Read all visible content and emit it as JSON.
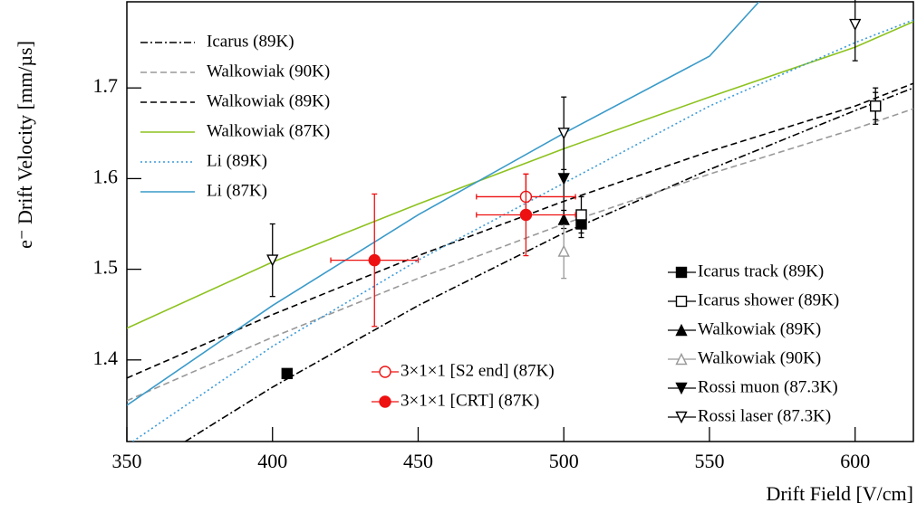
{
  "chart_data": {
    "type": "line",
    "x_label": "Drift Field [V/cm]",
    "y_label": "e⁻ Drift Velocity [mm/µs]",
    "xlim": [
      350,
      620
    ],
    "ylim": [
      1.31,
      1.795
    ],
    "xticks": [
      350,
      400,
      450,
      500,
      550,
      600
    ],
    "yticks": [
      1.4,
      1.5,
      1.6,
      1.7
    ],
    "series": [
      {
        "name": "Icarus (89K)",
        "kind": "line",
        "dash": "dashdot",
        "color": "#000000",
        "x": [
          370,
          400,
          450,
          500,
          550,
          600,
          620
        ],
        "values": [
          1.31,
          1.37,
          1.46,
          1.54,
          1.61,
          1.675,
          1.7
        ]
      },
      {
        "name": "Walkowiak (90K)",
        "kind": "line",
        "dash": "dashed",
        "color": "#999999",
        "x": [
          350,
          400,
          450,
          500,
          550,
          600,
          620
        ],
        "values": [
          1.355,
          1.425,
          1.49,
          1.55,
          1.605,
          1.655,
          1.677
        ]
      },
      {
        "name": "Walkowiak (89K)",
        "kind": "line",
        "dash": "dashed",
        "color": "#000000",
        "x": [
          350,
          400,
          450,
          500,
          550,
          600,
          620
        ],
        "values": [
          1.38,
          1.45,
          1.515,
          1.575,
          1.63,
          1.68,
          1.705
        ]
      },
      {
        "name": "Walkowiak (87K)",
        "kind": "line",
        "dash": "solid",
        "color": "#8dc21f",
        "x": [
          350,
          400,
          450,
          500,
          550,
          600,
          620
        ],
        "values": [
          1.435,
          1.508,
          1.572,
          1.633,
          1.69,
          1.745,
          1.773
        ]
      },
      {
        "name": "Li (89K)",
        "kind": "line",
        "dash": "dotted",
        "color": "#3a9ad9",
        "x": [
          352,
          400,
          450,
          500,
          550,
          600,
          620
        ],
        "values": [
          1.31,
          1.415,
          1.51,
          1.595,
          1.68,
          1.75,
          1.775
        ]
      },
      {
        "name": "Li (87K)",
        "kind": "line",
        "dash": "solid",
        "color": "#3a9ac9",
        "x": [
          350,
          400,
          450,
          500,
          550,
          567
        ],
        "values": [
          1.35,
          1.46,
          1.56,
          1.65,
          1.735,
          1.795
        ]
      },
      {
        "name": "Icarus track (89K)",
        "kind": "marker",
        "marker": "square",
        "color": "#000000",
        "x": [
          405,
          506,
          607
        ],
        "values": [
          1.385,
          1.55,
          1.68
        ],
        "yerr": [
          0,
          0.015,
          0.02
        ]
      },
      {
        "name": "Icarus shower (89K)",
        "kind": "marker",
        "marker": "square-open",
        "color": "#000000",
        "x": [
          506,
          607
        ],
        "values": [
          1.56,
          1.68
        ],
        "yerr": [
          0.02,
          0.015
        ]
      },
      {
        "name": "Walkowiak (89K)",
        "kind": "marker",
        "marker": "triangle",
        "color": "#000000",
        "x": [
          500
        ],
        "values": [
          1.555
        ],
        "yerr": [
          0.01
        ]
      },
      {
        "name": "Walkowiak (90K)",
        "kind": "marker",
        "marker": "triangle-open",
        "color": "#999999",
        "x": [
          500
        ],
        "values": [
          1.52
        ],
        "yerr": [
          0.03
        ]
      },
      {
        "name": "Rossi muon (87.3K)",
        "kind": "marker",
        "marker": "triangle-down",
        "color": "#000000",
        "x": [
          500
        ],
        "values": [
          1.6
        ],
        "yerr": [
          0.05
        ]
      },
      {
        "name": "Rossi laser (87.3K)",
        "kind": "marker",
        "marker": "triangle-down-open",
        "color": "#000000",
        "x": [
          400,
          500,
          600
        ],
        "values": [
          1.51,
          1.65,
          1.77
        ],
        "yerr": [
          0.04,
          0.04,
          0.04
        ]
      },
      {
        "name": "3×1×1 [S2 end] (87K)",
        "kind": "marker",
        "marker": "circle-open",
        "color": "#ee1111",
        "x": [
          487
        ],
        "values": [
          1.58
        ],
        "xerr": [
          17
        ],
        "yerr": [
          0.025
        ]
      },
      {
        "name": "3×1×1 [CRT] (87K)",
        "kind": "marker",
        "marker": "circle",
        "color": "#ee1111",
        "x": [
          435,
          487
        ],
        "values": [
          1.51,
          1.56
        ],
        "xerr": [
          15,
          17
        ],
        "yerr": [
          0.073,
          0.045
        ]
      }
    ]
  }
}
